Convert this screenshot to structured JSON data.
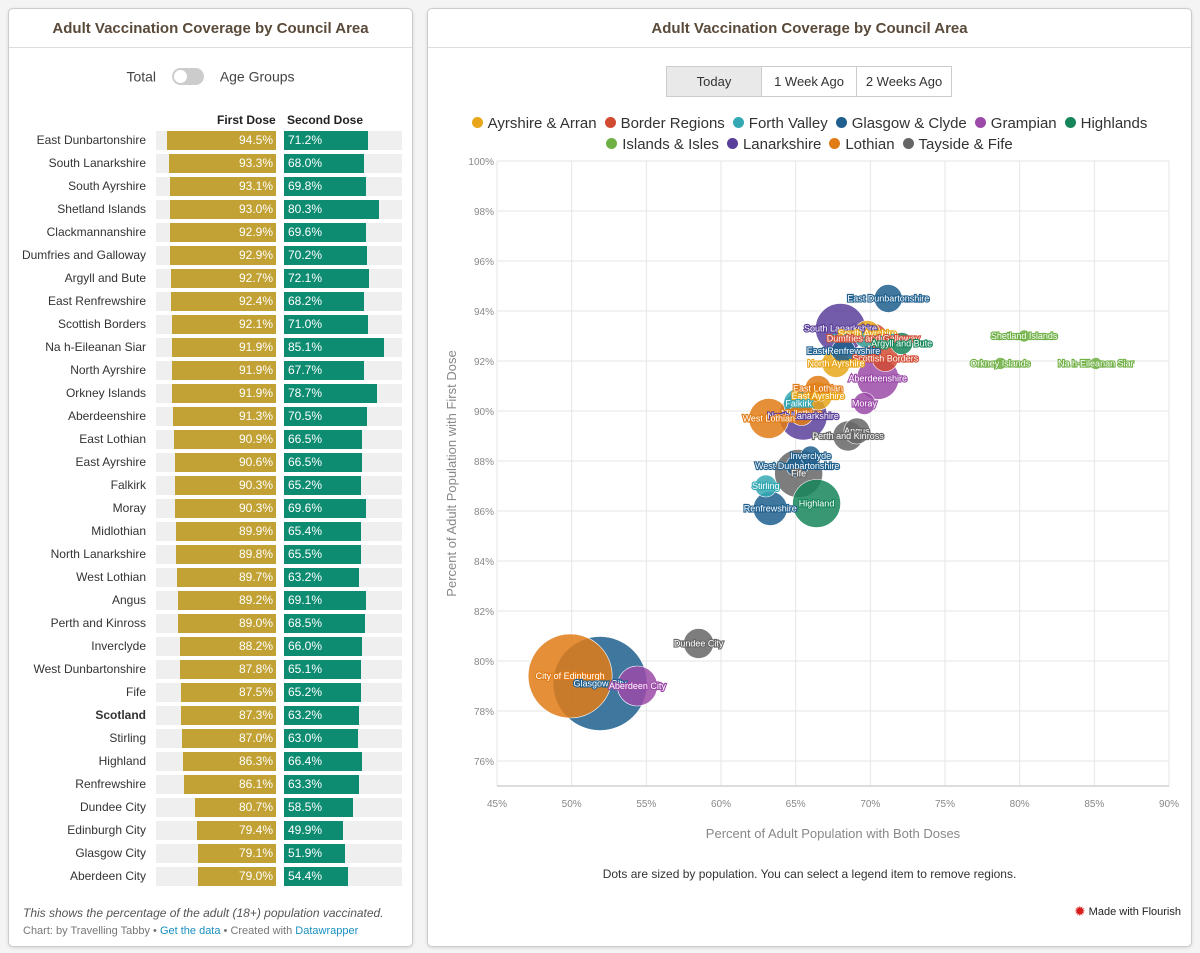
{
  "left": {
    "title": "Adult Vaccination Coverage by Council Area",
    "toggle_left": "Total",
    "toggle_right": "Age Groups",
    "col_first": "First Dose",
    "col_second": "Second Dose",
    "footnote": "This shows the percentage of the adult (18+) population vaccinated.",
    "credit_prefix": "Chart: by Travelling Tabby • ",
    "credit_link1": "Get the data",
    "credit_mid": " • Created with ",
    "credit_link2": "Datawrapper"
  },
  "right": {
    "title": "Adult Vaccination Coverage by Council Area",
    "tabs": [
      "Today",
      "1 Week Ago",
      "2 Weeks Ago"
    ],
    "active_tab": 0,
    "note": "Dots are sized by population. You can select a legend item to remove regions.",
    "flourish": "Made with Flourish"
  },
  "colors": {
    "first_dose": "#c2a235",
    "second_dose": "#0d8c72",
    "Ayrshire & Arran": "#e8a71a",
    "Border Regions": "#d14b33",
    "Forth Valley": "#35a9b3",
    "Glasgow & Clyde": "#1e5f8e",
    "Grampian": "#9b4aa8",
    "Highlands": "#16865a",
    "Islands & Isles": "#6fb045",
    "Lanarkshire": "#5a3f9a",
    "Lothian": "#e07b16",
    "Tayside & Fife": "#666666"
  },
  "chart_data": [
    {
      "type": "bar",
      "categories": [
        "East Dunbartonshire",
        "South Lanarkshire",
        "South Ayrshire",
        "Shetland Islands",
        "Clackmannanshire",
        "Dumfries and Galloway",
        "Argyll and Bute",
        "East Renfrewshire",
        "Scottish Borders",
        "Na h-Eileanan Siar",
        "North Ayrshire",
        "Orkney Islands",
        "Aberdeenshire",
        "East Lothian",
        "East Ayrshire",
        "Falkirk",
        "Moray",
        "Midlothian",
        "North Lanarkshire",
        "West Lothian",
        "Angus",
        "Perth and Kinross",
        "Inverclyde",
        "West Dunbartonshire",
        "Fife",
        "Scotland",
        "Stirling",
        "Highland",
        "Renfrewshire",
        "Dundee City",
        "Edinburgh City",
        "Glasgow City",
        "Aberdeen City"
      ],
      "highlight": "Scotland",
      "series": [
        {
          "name": "First Dose",
          "values": [
            94.5,
            93.3,
            93.1,
            93.0,
            92.9,
            92.9,
            92.7,
            92.4,
            92.1,
            91.9,
            91.9,
            91.9,
            91.3,
            90.9,
            90.6,
            90.3,
            90.3,
            89.9,
            89.8,
            89.7,
            89.2,
            89.0,
            88.2,
            87.8,
            87.5,
            87.3,
            87.0,
            86.3,
            86.1,
            80.7,
            79.4,
            79.1,
            79.0
          ]
        },
        {
          "name": "Second Dose",
          "values": [
            71.2,
            68.0,
            69.8,
            80.3,
            69.6,
            70.2,
            72.1,
            68.2,
            71.0,
            85.1,
            67.7,
            78.7,
            70.5,
            66.5,
            66.5,
            65.2,
            69.6,
            65.4,
            65.5,
            63.2,
            69.1,
            68.5,
            66.0,
            65.1,
            65.2,
            63.2,
            63.0,
            66.4,
            63.3,
            58.5,
            49.9,
            51.9,
            54.4
          ]
        }
      ],
      "value_suffix": "%"
    },
    {
      "type": "scatter",
      "xlabel": "Percent of Adult Population with Both Doses",
      "ylabel": "Percent of Adult Population with First Dose",
      "xlim": [
        45,
        90
      ],
      "ylim": [
        75,
        100
      ],
      "xticks": [
        "45%",
        "50%",
        "55%",
        "60%",
        "65%",
        "70%",
        "75%",
        "80%",
        "85%",
        "90%"
      ],
      "yticks": [
        "76%",
        "78%",
        "80%",
        "82%",
        "84%",
        "86%",
        "88%",
        "90%",
        "92%",
        "94%",
        "96%",
        "98%",
        "100%"
      ],
      "size_encoding": "population",
      "legend": [
        "Ayrshire & Arran",
        "Border Regions",
        "Forth Valley",
        "Glasgow & Clyde",
        "Grampian",
        "Highlands",
        "Islands & Isles",
        "Lanarkshire",
        "Lothian",
        "Tayside & Fife"
      ],
      "legend_position": "top",
      "points": [
        {
          "label": "East Dunbartonshire",
          "x": 71.2,
          "y": 94.5,
          "group": "Glasgow & Clyde",
          "size": 14
        },
        {
          "label": "South Lanarkshire",
          "x": 68.0,
          "y": 93.3,
          "group": "Lanarkshire",
          "size": 25
        },
        {
          "label": "South Ayrshire",
          "x": 69.8,
          "y": 93.1,
          "group": "Ayrshire & Arran",
          "size": 13
        },
        {
          "label": "Shetland Islands",
          "x": 80.3,
          "y": 93.0,
          "group": "Islands & Isles",
          "size": 6
        },
        {
          "label": "Clackmannanshire",
          "x": 69.6,
          "y": 92.9,
          "group": "Forth Valley",
          "size": 9
        },
        {
          "label": "Dumfries and Galloway",
          "x": 70.2,
          "y": 92.9,
          "group": "Border Regions",
          "size": 15
        },
        {
          "label": "Argyll and Bute",
          "x": 72.1,
          "y": 92.7,
          "group": "Highlands",
          "size": 11
        },
        {
          "label": "East Renfrewshire",
          "x": 68.2,
          "y": 92.4,
          "group": "Glasgow & Clyde",
          "size": 12
        },
        {
          "label": "Scottish Borders",
          "x": 71.0,
          "y": 92.1,
          "group": "Border Regions",
          "size": 13
        },
        {
          "label": "Na h-Eileanan Siar",
          "x": 85.1,
          "y": 91.9,
          "group": "Islands & Isles",
          "size": 6
        },
        {
          "label": "North Ayrshire",
          "x": 67.7,
          "y": 91.9,
          "group": "Ayrshire & Arran",
          "size": 14
        },
        {
          "label": "Orkney Islands",
          "x": 78.7,
          "y": 91.9,
          "group": "Islands & Isles",
          "size": 6
        },
        {
          "label": "Aberdeenshire",
          "x": 70.5,
          "y": 91.3,
          "group": "Grampian",
          "size": 21
        },
        {
          "label": "East Lothian",
          "x": 66.5,
          "y": 90.9,
          "group": "Lothian",
          "size": 13
        },
        {
          "label": "East Ayrshire",
          "x": 66.5,
          "y": 90.6,
          "group": "Ayrshire & Arran",
          "size": 14
        },
        {
          "label": "Falkirk",
          "x": 65.2,
          "y": 90.3,
          "group": "Forth Valley",
          "size": 15
        },
        {
          "label": "Moray",
          "x": 69.6,
          "y": 90.3,
          "group": "Grampian",
          "size": 11
        },
        {
          "label": "Midlothian",
          "x": 65.4,
          "y": 89.9,
          "group": "Lothian",
          "size": 12
        },
        {
          "label": "North Lanarkshire",
          "x": 65.5,
          "y": 89.8,
          "group": "Lanarkshire",
          "size": 24
        },
        {
          "label": "West Lothian",
          "x": 63.2,
          "y": 89.7,
          "group": "Lothian",
          "size": 20
        },
        {
          "label": "Angus",
          "x": 69.1,
          "y": 89.2,
          "group": "Tayside & Fife",
          "size": 13
        },
        {
          "label": "Perth and Kinross",
          "x": 68.5,
          "y": 89.0,
          "group": "Tayside & Fife",
          "size": 15
        },
        {
          "label": "Inverclyde",
          "x": 66.0,
          "y": 88.2,
          "group": "Glasgow & Clyde",
          "size": 10
        },
        {
          "label": "West Dunbartonshire",
          "x": 65.1,
          "y": 87.8,
          "group": "Glasgow & Clyde",
          "size": 11
        },
        {
          "label": "Fife",
          "x": 65.2,
          "y": 87.5,
          "group": "Tayside & Fife",
          "size": 24
        },
        {
          "label": "Stirling",
          "x": 63.0,
          "y": 87.0,
          "group": "Forth Valley",
          "size": 11
        },
        {
          "label": "Highland",
          "x": 66.4,
          "y": 86.3,
          "group": "Highlands",
          "size": 24
        },
        {
          "label": "Renfrewshire",
          "x": 63.3,
          "y": 86.1,
          "group": "Glasgow & Clyde",
          "size": 17
        },
        {
          "label": "Dundee City",
          "x": 58.5,
          "y": 80.7,
          "group": "Tayside & Fife",
          "size": 15
        },
        {
          "label": "City of Edinburgh",
          "x": 49.9,
          "y": 79.4,
          "group": "Lothian",
          "size": 42
        },
        {
          "label": "Glasgow City",
          "x": 51.9,
          "y": 79.1,
          "group": "Glasgow & Clyde",
          "size": 47
        },
        {
          "label": "Aberdeen City",
          "x": 54.4,
          "y": 79.0,
          "group": "Grampian",
          "size": 20
        }
      ]
    }
  ]
}
